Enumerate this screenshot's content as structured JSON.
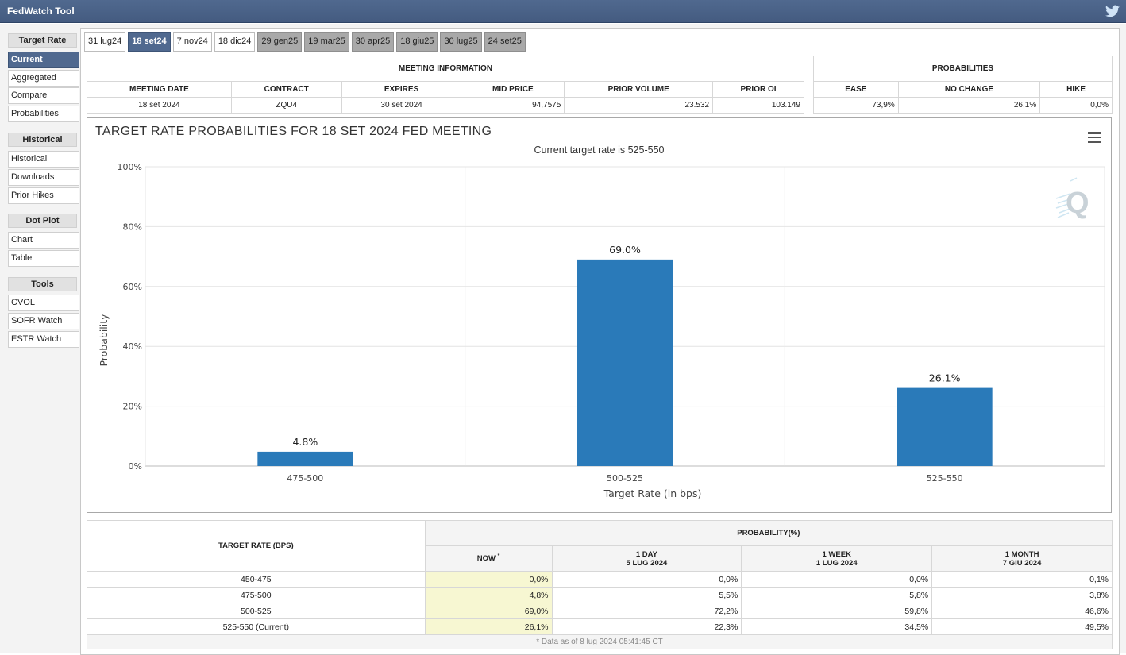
{
  "app": {
    "title": "FedWatch Tool"
  },
  "sidebar": {
    "groups": [
      {
        "header": "Target Rate",
        "items": [
          "Current",
          "Aggregated",
          "Compare",
          "Probabilities"
        ]
      },
      {
        "header": "Historical",
        "items": [
          "Historical",
          "Downloads",
          "Prior Hikes"
        ]
      },
      {
        "header": "Dot Plot",
        "items": [
          "Chart",
          "Table"
        ]
      },
      {
        "header": "Tools",
        "items": [
          "CVOL",
          "SOFR Watch",
          "ESTR Watch"
        ]
      }
    ]
  },
  "tabs": [
    "31 lug24",
    "18 set24",
    "7 nov24",
    "18 dic24",
    "29 gen25",
    "19 mar25",
    "30 apr25",
    "18 giu25",
    "30 lug25",
    "24 set25"
  ],
  "meeting_info": {
    "header": "MEETING INFORMATION",
    "columns": [
      "MEETING DATE",
      "CONTRACT",
      "EXPIRES",
      "MID PRICE",
      "PRIOR VOLUME",
      "PRIOR OI"
    ],
    "values": [
      "18 set 2024",
      "ZQU4",
      "30 set 2024",
      "94,7575",
      "23.532",
      "103.149"
    ]
  },
  "probabilities": {
    "header": "PROBABILITIES",
    "columns": [
      "EASE",
      "NO CHANGE",
      "HIKE"
    ],
    "values": [
      "73,9%",
      "26,1%",
      "0,0%"
    ]
  },
  "chart": {
    "title": "TARGET RATE PROBABILITIES FOR 18 SET 2024 FED MEETING",
    "subtitle": "Current target rate is 525-550",
    "bar_color": "#2a7ab9"
  },
  "chart_data": {
    "type": "bar",
    "categories": [
      "475-500",
      "500-525",
      "525-550"
    ],
    "values": [
      4.8,
      69.0,
      26.1
    ],
    "data_labels": [
      "4.8%",
      "69.0%",
      "26.1%"
    ],
    "xlabel": "Target Rate (in bps)",
    "ylabel": "Probability",
    "ylim": [
      0,
      100
    ],
    "yticks": [
      "0%",
      "20%",
      "40%",
      "60%",
      "80%",
      "100%"
    ],
    "grid": true
  },
  "prob_table": {
    "row_header": "TARGET RATE (BPS)",
    "group_header": "PROBABILITY(%)",
    "columns": [
      {
        "l1": "NOW",
        "l2": ""
      },
      {
        "l1": "1 DAY",
        "l2": "5 LUG 2024"
      },
      {
        "l1": "1 WEEK",
        "l2": "1 LUG 2024"
      },
      {
        "l1": "1 MONTH",
        "l2": "7 GIU 2024"
      }
    ],
    "now_marker": "*",
    "rows": [
      {
        "rate": "450-475",
        "vals": [
          "0,0%",
          "0,0%",
          "0,0%",
          "0,1%"
        ]
      },
      {
        "rate": "475-500",
        "vals": [
          "4,8%",
          "5,5%",
          "5,8%",
          "3,8%"
        ]
      },
      {
        "rate": "500-525",
        "vals": [
          "69,0%",
          "72,2%",
          "59,8%",
          "46,6%"
        ]
      },
      {
        "rate": "525-550 (Current)",
        "vals": [
          "26,1%",
          "22,3%",
          "34,5%",
          "49,5%"
        ]
      }
    ],
    "footnote": "* Data as of 8 lug 2024 05:41:45 CT"
  }
}
